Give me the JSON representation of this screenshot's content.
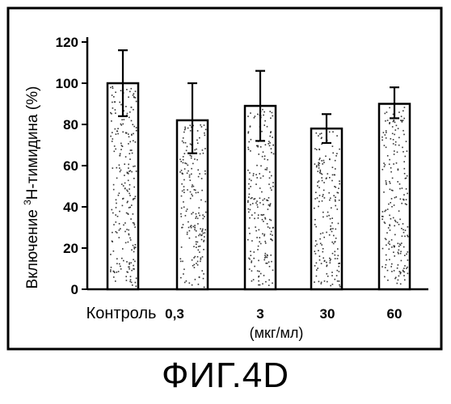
{
  "figure_label": "ФИГ.4D",
  "chart_data": {
    "type": "bar",
    "categories": [
      "Контроль",
      "0,3",
      "3",
      "30",
      "60"
    ],
    "values": [
      100,
      82,
      89,
      78,
      90
    ],
    "errors": [
      [
        84,
        116
      ],
      [
        66,
        100
      ],
      [
        72,
        106
      ],
      [
        71,
        85
      ],
      [
        83,
        98
      ]
    ],
    "ylabel_prefix": "Включение ",
    "ylabel_superscript": "3",
    "ylabel_suffix": "Н-тимидина (%)",
    "xunit": "(мкг/мл)",
    "ylim": [
      0,
      120
    ],
    "yticks": [
      0,
      20,
      40,
      60,
      80,
      100,
      120
    ],
    "grid": false,
    "legend": "none",
    "colors": {
      "bar_fill": "#ffffff",
      "stipple": "#333333",
      "ink": "#000000"
    }
  }
}
